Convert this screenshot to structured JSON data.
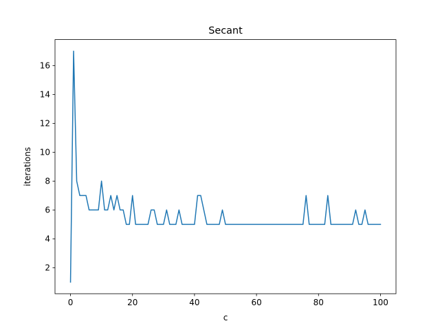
{
  "chart_data": {
    "type": "line",
    "title": "Secant",
    "xlabel": "c",
    "ylabel": "iterations",
    "xlim": [
      -5,
      105
    ],
    "ylim": [
      0.2,
      17.8
    ],
    "xticks": [
      0,
      20,
      40,
      60,
      80,
      100
    ],
    "yticks": [
      2,
      4,
      6,
      8,
      10,
      12,
      14,
      16
    ],
    "grid": false,
    "series_color": "#1f77b4",
    "x": [
      0,
      1,
      2,
      3,
      4,
      5,
      6,
      7,
      8,
      9,
      10,
      11,
      12,
      13,
      14,
      15,
      16,
      17,
      18,
      19,
      20,
      21,
      22,
      23,
      24,
      25,
      26,
      27,
      28,
      29,
      30,
      31,
      32,
      33,
      34,
      35,
      36,
      37,
      38,
      39,
      40,
      41,
      42,
      43,
      44,
      45,
      46,
      47,
      48,
      49,
      50,
      51,
      52,
      53,
      54,
      55,
      56,
      57,
      58,
      59,
      60,
      61,
      62,
      63,
      64,
      65,
      66,
      67,
      68,
      69,
      70,
      71,
      72,
      73,
      74,
      75,
      76,
      77,
      78,
      79,
      80,
      81,
      82,
      83,
      84,
      85,
      86,
      87,
      88,
      89,
      90,
      91,
      92,
      93,
      94,
      95,
      96,
      97,
      98,
      99,
      100
    ],
    "series": [
      {
        "values": [
          1,
          17,
          8,
          7,
          7,
          7,
          6,
          6,
          6,
          6,
          8,
          6,
          6,
          7,
          6,
          7,
          6,
          6,
          5,
          5,
          7,
          5,
          5,
          5,
          5,
          5,
          6,
          6,
          5,
          5,
          5,
          6,
          5,
          5,
          5,
          6,
          5,
          5,
          5,
          5,
          5,
          7,
          7,
          6,
          5,
          5,
          5,
          5,
          5,
          6,
          5,
          5,
          5,
          5,
          5,
          5,
          5,
          5,
          5,
          5,
          5,
          5,
          5,
          5,
          5,
          5,
          5,
          5,
          5,
          5,
          5,
          5,
          5,
          5,
          5,
          5,
          7,
          5,
          5,
          5,
          5,
          5,
          5,
          7,
          5,
          5,
          5,
          5,
          5,
          5,
          5,
          5,
          6,
          5,
          5,
          6,
          5,
          5,
          5,
          5,
          5
        ]
      }
    ]
  }
}
